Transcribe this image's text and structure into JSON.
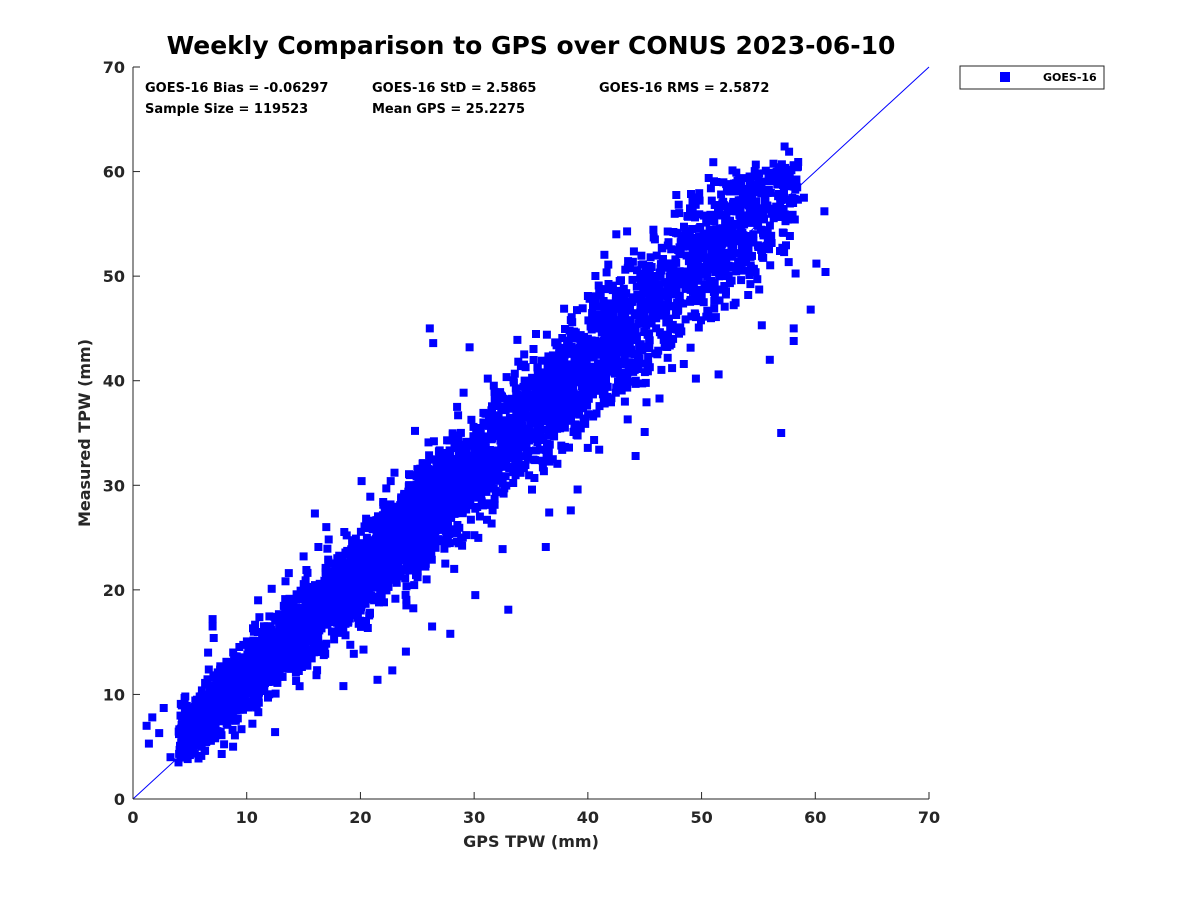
{
  "chart_data": {
    "type": "scatter",
    "title": "Weekly Comparison to GPS over CONUS 2023-06-10",
    "xlabel": "GPS TPW (mm)",
    "ylabel": "Measured TPW (mm)",
    "xlim": [
      0,
      70
    ],
    "ylim": [
      0,
      70
    ],
    "xticks": [
      "0",
      "10",
      "20",
      "30",
      "40",
      "50",
      "60",
      "70"
    ],
    "yticks": [
      "0",
      "10",
      "20",
      "30",
      "40",
      "50",
      "60",
      "70"
    ],
    "grid": false,
    "legend_position": "outside top-right",
    "reference_line": {
      "description": "1:1 line",
      "x": [
        0,
        70
      ],
      "y": [
        0,
        70
      ],
      "color": "#0000ff"
    },
    "stats": {
      "bias": "GOES-16 Bias = -0.06297",
      "std": "GOES-16 StD = 2.5865",
      "rms": "GOES-16 RMS = 2.5872",
      "sample": "Sample Size = 119523",
      "mean": "Mean GPS = 25.2275"
    },
    "series": [
      {
        "name": "GOES-16",
        "color": "#0000ff",
        "marker": "square",
        "points": [
          [
            1.2,
            7.0
          ],
          [
            1.7,
            7.8
          ],
          [
            1.4,
            5.3
          ],
          [
            2.3,
            6.3
          ],
          [
            2.7,
            8.7
          ],
          [
            3.3,
            4.0
          ],
          [
            4.0,
            3.5
          ],
          [
            4.6,
            9.8
          ],
          [
            5.0,
            4.2
          ],
          [
            6.3,
            4.6
          ],
          [
            7.0,
            17.2
          ],
          [
            7.0,
            16.5
          ],
          [
            7.1,
            15.4
          ],
          [
            6.6,
            14.0
          ],
          [
            7.8,
            4.3
          ],
          [
            8.8,
            5.0
          ],
          [
            9.5,
            12.5
          ],
          [
            10.5,
            7.2
          ],
          [
            11.0,
            19.0
          ],
          [
            12.5,
            6.4
          ],
          [
            13.7,
            21.6
          ],
          [
            12.2,
            20.1
          ],
          [
            15.0,
            23.2
          ],
          [
            16.3,
            24.1
          ],
          [
            19.6,
            24.9
          ],
          [
            20.5,
            26.8
          ],
          [
            22.0,
            28.4
          ],
          [
            18.5,
            10.8
          ],
          [
            21.5,
            11.4
          ],
          [
            22.8,
            12.3
          ],
          [
            24.0,
            14.1
          ],
          [
            26.3,
            16.5
          ],
          [
            27.9,
            15.8
          ],
          [
            30.1,
            19.5
          ],
          [
            33.0,
            18.1
          ],
          [
            36.3,
            24.1
          ],
          [
            38.5,
            27.6
          ],
          [
            41.0,
            33.4
          ],
          [
            44.2,
            32.8
          ],
          [
            45.0,
            35.1
          ],
          [
            24.8,
            35.2
          ],
          [
            26.4,
            43.6
          ],
          [
            26.1,
            45.0
          ],
          [
            29.6,
            43.2
          ],
          [
            33.8,
            43.9
          ],
          [
            36.4,
            44.4
          ],
          [
            38.5,
            45.8
          ],
          [
            40.0,
            48.1
          ],
          [
            41.8,
            51.1
          ],
          [
            42.2,
            49.1
          ],
          [
            40.7,
            47.8
          ],
          [
            42.5,
            54.0
          ],
          [
            45.5,
            49.5
          ],
          [
            47.7,
            51.6
          ],
          [
            49.5,
            40.2
          ],
          [
            51.5,
            40.6
          ],
          [
            51.3,
            59.0
          ],
          [
            53.3,
            59.3
          ],
          [
            54.6,
            50.7
          ],
          [
            55.3,
            45.3
          ],
          [
            56.0,
            42.0
          ],
          [
            57.0,
            58.9
          ],
          [
            57.3,
            62.4
          ],
          [
            57.7,
            61.9
          ],
          [
            58.1,
            45.0
          ],
          [
            58.1,
            43.8
          ],
          [
            59.0,
            57.5
          ],
          [
            60.1,
            51.2
          ],
          [
            60.9,
            50.4
          ],
          [
            60.8,
            56.2
          ],
          [
            59.6,
            46.8
          ],
          [
            57.0,
            35.0
          ],
          [
            25.5,
            30.3
          ],
          [
            28.5,
            37.5
          ],
          [
            31.2,
            40.2
          ],
          [
            34.5,
            38.6
          ],
          [
            36.1,
            35.3
          ],
          [
            36.6,
            27.4
          ],
          [
            39.1,
            29.6
          ],
          [
            43.5,
            36.3
          ],
          [
            46.3,
            38.3
          ],
          [
            47.5,
            44.0
          ],
          [
            48.3,
            50.1
          ],
          [
            50.5,
            46.7
          ],
          [
            52.5,
            55.3
          ],
          [
            54.1,
            48.2
          ],
          [
            55.8,
            56.7
          ],
          [
            25.8,
            23.5
          ],
          [
            29.0,
            25.0
          ],
          [
            31.8,
            28.7
          ],
          [
            32.5,
            23.9
          ],
          [
            35.3,
            30.7
          ],
          [
            23.0,
            31.2
          ],
          [
            20.1,
            30.4
          ],
          [
            17.0,
            26.0
          ],
          [
            16.0,
            27.3
          ]
        ]
      }
    ]
  }
}
